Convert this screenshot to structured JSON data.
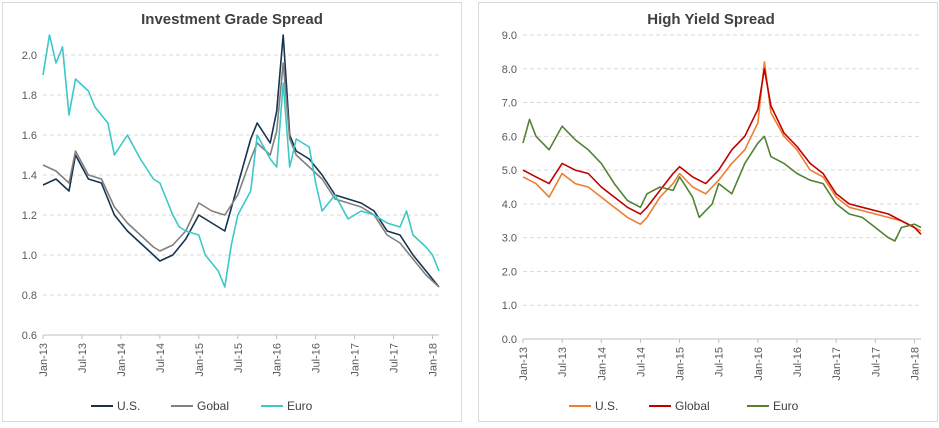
{
  "chart_data": [
    {
      "type": "line",
      "title": "Investment Grade Spread",
      "xlabel": "",
      "ylabel": "",
      "ylim": [
        0.6,
        2.1
      ],
      "yticks": [
        "0.6",
        "0.8",
        "1.0",
        "1.2",
        "1.4",
        "1.6",
        "1.8",
        "2.0"
      ],
      "xticks": [
        "Jan-13",
        "Jul-13",
        "Jan-14",
        "Jul-14",
        "Jan-15",
        "Jul-15",
        "Jan-16",
        "Jul-16",
        "Jan-17",
        "Jul-17",
        "Jan-18"
      ],
      "grid": "horizontal dashed",
      "legend_position": "bottom",
      "series": [
        {
          "name": "U.S.",
          "color": "#17344f",
          "points": [
            [
              "Jan-13",
              1.35
            ],
            [
              "Mar-13",
              1.38
            ],
            [
              "May-13",
              1.32
            ],
            [
              "Jun-13",
              1.5
            ],
            [
              "Aug-13",
              1.38
            ],
            [
              "Oct-13",
              1.36
            ],
            [
              "Dec-13",
              1.2
            ],
            [
              "Feb-14",
              1.12
            ],
            [
              "Apr-14",
              1.06
            ],
            [
              "Jun-14",
              1.0
            ],
            [
              "Jul-14",
              0.97
            ],
            [
              "Sep-14",
              1.0
            ],
            [
              "Nov-14",
              1.08
            ],
            [
              "Jan-15",
              1.2
            ],
            [
              "Mar-15",
              1.16
            ],
            [
              "May-15",
              1.12
            ],
            [
              "Jul-15",
              1.35
            ],
            [
              "Sep-15",
              1.58
            ],
            [
              "Oct-15",
              1.66
            ],
            [
              "Dec-15",
              1.56
            ],
            [
              "Jan-16",
              1.72
            ],
            [
              "Feb-16",
              2.1
            ],
            [
              "Mar-16",
              1.6
            ],
            [
              "Apr-16",
              1.52
            ],
            [
              "Jun-16",
              1.48
            ],
            [
              "Aug-16",
              1.4
            ],
            [
              "Oct-16",
              1.3
            ],
            [
              "Dec-16",
              1.28
            ],
            [
              "Feb-17",
              1.26
            ],
            [
              "Apr-17",
              1.22
            ],
            [
              "Jun-17",
              1.12
            ],
            [
              "Aug-17",
              1.1
            ],
            [
              "Oct-17",
              1.0
            ],
            [
              "Dec-17",
              0.92
            ],
            [
              "Feb-18",
              0.84
            ]
          ]
        },
        {
          "name": "Gobal",
          "color": "#808080",
          "points": [
            [
              "Jan-13",
              1.45
            ],
            [
              "Mar-13",
              1.42
            ],
            [
              "May-13",
              1.36
            ],
            [
              "Jun-13",
              1.52
            ],
            [
              "Aug-13",
              1.4
            ],
            [
              "Oct-13",
              1.38
            ],
            [
              "Dec-13",
              1.24
            ],
            [
              "Feb-14",
              1.16
            ],
            [
              "Apr-14",
              1.1
            ],
            [
              "Jun-14",
              1.04
            ],
            [
              "Jul-14",
              1.02
            ],
            [
              "Sep-14",
              1.05
            ],
            [
              "Nov-14",
              1.12
            ],
            [
              "Jan-15",
              1.26
            ],
            [
              "Mar-15",
              1.22
            ],
            [
              "May-15",
              1.2
            ],
            [
              "Jul-15",
              1.3
            ],
            [
              "Sep-15",
              1.48
            ],
            [
              "Oct-15",
              1.56
            ],
            [
              "Dec-15",
              1.5
            ],
            [
              "Jan-16",
              1.62
            ],
            [
              "Feb-16",
              1.96
            ],
            [
              "Mar-16",
              1.58
            ],
            [
              "Apr-16",
              1.5
            ],
            [
              "Jun-16",
              1.44
            ],
            [
              "Aug-16",
              1.38
            ],
            [
              "Oct-16",
              1.28
            ],
            [
              "Dec-16",
              1.26
            ],
            [
              "Feb-17",
              1.24
            ],
            [
              "Apr-17",
              1.2
            ],
            [
              "Jun-17",
              1.1
            ],
            [
              "Aug-17",
              1.06
            ],
            [
              "Oct-17",
              0.98
            ],
            [
              "Dec-17",
              0.9
            ],
            [
              "Feb-18",
              0.84
            ]
          ]
        },
        {
          "name": "Euro",
          "color": "#3cc8c8",
          "points": [
            [
              "Jan-13",
              1.9
            ],
            [
              "Feb-13",
              2.1
            ],
            [
              "Mar-13",
              1.96
            ],
            [
              "Apr-13",
              2.04
            ],
            [
              "May-13",
              1.7
            ],
            [
              "Jun-13",
              1.88
            ],
            [
              "Aug-13",
              1.82
            ],
            [
              "Sep-13",
              1.74
            ],
            [
              "Nov-13",
              1.66
            ],
            [
              "Dec-13",
              1.5
            ],
            [
              "Feb-14",
              1.6
            ],
            [
              "Apr-14",
              1.48
            ],
            [
              "Jun-14",
              1.38
            ],
            [
              "Jul-14",
              1.36
            ],
            [
              "Sep-14",
              1.2
            ],
            [
              "Oct-14",
              1.14
            ],
            [
              "Nov-14",
              1.12
            ],
            [
              "Jan-15",
              1.1
            ],
            [
              "Feb-15",
              1.0
            ],
            [
              "Apr-15",
              0.92
            ],
            [
              "May-15",
              0.84
            ],
            [
              "Jun-15",
              1.05
            ],
            [
              "Jul-15",
              1.2
            ],
            [
              "Sep-15",
              1.32
            ],
            [
              "Oct-15",
              1.6
            ],
            [
              "Dec-15",
              1.48
            ],
            [
              "Jan-16",
              1.44
            ],
            [
              "Feb-16",
              1.86
            ],
            [
              "Mar-16",
              1.44
            ],
            [
              "Apr-16",
              1.58
            ],
            [
              "Jun-16",
              1.54
            ],
            [
              "Jul-16",
              1.36
            ],
            [
              "Aug-16",
              1.22
            ],
            [
              "Oct-16",
              1.3
            ],
            [
              "Dec-16",
              1.18
            ],
            [
              "Feb-17",
              1.22
            ],
            [
              "Apr-17",
              1.2
            ],
            [
              "Jun-17",
              1.16
            ],
            [
              "Aug-17",
              1.14
            ],
            [
              "Sep-17",
              1.22
            ],
            [
              "Oct-17",
              1.1
            ],
            [
              "Dec-17",
              1.04
            ],
            [
              "Jan-18",
              1.0
            ],
            [
              "Feb-18",
              0.92
            ]
          ]
        }
      ]
    },
    {
      "type": "line",
      "title": "High Yield Spread",
      "xlabel": "",
      "ylabel": "",
      "ylim": [
        0.0,
        9.0
      ],
      "yticks": [
        "0.0",
        "1.0",
        "2.0",
        "3.0",
        "4.0",
        "5.0",
        "6.0",
        "7.0",
        "8.0",
        "9.0"
      ],
      "xticks": [
        "Jan-13",
        "Jul-13",
        "Jan-14",
        "Jul-14",
        "Jan-15",
        "Jul-15",
        "Jan-16",
        "Jul-16",
        "Jan-17",
        "Jul-17",
        "Jan-18"
      ],
      "grid": "horizontal dashed",
      "legend_position": "bottom",
      "series": [
        {
          "name": "U.S.",
          "color": "#ed7d31",
          "points": [
            [
              "Jan-13",
              4.8
            ],
            [
              "Mar-13",
              4.6
            ],
            [
              "May-13",
              4.2
            ],
            [
              "Jul-13",
              4.9
            ],
            [
              "Sep-13",
              4.6
            ],
            [
              "Nov-13",
              4.5
            ],
            [
              "Jan-14",
              4.2
            ],
            [
              "Mar-14",
              3.9
            ],
            [
              "May-14",
              3.6
            ],
            [
              "Jul-14",
              3.4
            ],
            [
              "Aug-14",
              3.6
            ],
            [
              "Oct-14",
              4.2
            ],
            [
              "Dec-14",
              4.6
            ],
            [
              "Jan-15",
              4.9
            ],
            [
              "Mar-15",
              4.5
            ],
            [
              "May-15",
              4.3
            ],
            [
              "Jul-15",
              4.7
            ],
            [
              "Sep-15",
              5.2
            ],
            [
              "Nov-15",
              5.6
            ],
            [
              "Jan-16",
              6.4
            ],
            [
              "Feb-16",
              8.2
            ],
            [
              "Mar-16",
              6.7
            ],
            [
              "May-16",
              6.0
            ],
            [
              "Jul-16",
              5.6
            ],
            [
              "Sep-16",
              5.0
            ],
            [
              "Nov-16",
              4.8
            ],
            [
              "Jan-17",
              4.2
            ],
            [
              "Mar-17",
              3.9
            ],
            [
              "May-17",
              3.8
            ],
            [
              "Jul-17",
              3.7
            ],
            [
              "Sep-17",
              3.6
            ],
            [
              "Nov-17",
              3.5
            ],
            [
              "Jan-18",
              3.3
            ],
            [
              "Feb-18",
              3.2
            ]
          ]
        },
        {
          "name": "Global",
          "color": "#c00000",
          "points": [
            [
              "Jan-13",
              5.0
            ],
            [
              "Mar-13",
              4.8
            ],
            [
              "May-13",
              4.6
            ],
            [
              "Jul-13",
              5.2
            ],
            [
              "Sep-13",
              5.0
            ],
            [
              "Nov-13",
              4.9
            ],
            [
              "Jan-14",
              4.5
            ],
            [
              "Mar-14",
              4.2
            ],
            [
              "May-14",
              3.9
            ],
            [
              "Jul-14",
              3.7
            ],
            [
              "Aug-14",
              3.9
            ],
            [
              "Oct-14",
              4.4
            ],
            [
              "Dec-14",
              4.9
            ],
            [
              "Jan-15",
              5.1
            ],
            [
              "Mar-15",
              4.8
            ],
            [
              "May-15",
              4.6
            ],
            [
              "Jul-15",
              5.0
            ],
            [
              "Sep-15",
              5.6
            ],
            [
              "Nov-15",
              6.0
            ],
            [
              "Jan-16",
              6.8
            ],
            [
              "Feb-16",
              8.0
            ],
            [
              "Mar-16",
              6.9
            ],
            [
              "May-16",
              6.1
            ],
            [
              "Jul-16",
              5.7
            ],
            [
              "Sep-16",
              5.2
            ],
            [
              "Nov-16",
              4.9
            ],
            [
              "Jan-17",
              4.3
            ],
            [
              "Mar-17",
              4.0
            ],
            [
              "May-17",
              3.9
            ],
            [
              "Jul-17",
              3.8
            ],
            [
              "Sep-17",
              3.7
            ],
            [
              "Nov-17",
              3.5
            ],
            [
              "Jan-18",
              3.3
            ],
            [
              "Feb-18",
              3.1
            ]
          ]
        },
        {
          "name": "Euro",
          "color": "#548235",
          "points": [
            [
              "Jan-13",
              5.8
            ],
            [
              "Feb-13",
              6.5
            ],
            [
              "Mar-13",
              6.0
            ],
            [
              "May-13",
              5.6
            ],
            [
              "Jul-13",
              6.3
            ],
            [
              "Sep-13",
              5.9
            ],
            [
              "Nov-13",
              5.6
            ],
            [
              "Jan-14",
              5.2
            ],
            [
              "Mar-14",
              4.6
            ],
            [
              "May-14",
              4.1
            ],
            [
              "Jul-14",
              3.9
            ],
            [
              "Aug-14",
              4.3
            ],
            [
              "Oct-14",
              4.5
            ],
            [
              "Dec-14",
              4.4
            ],
            [
              "Jan-15",
              4.8
            ],
            [
              "Mar-15",
              4.2
            ],
            [
              "Apr-15",
              3.6
            ],
            [
              "Jun-15",
              4.0
            ],
            [
              "Jul-15",
              4.6
            ],
            [
              "Sep-15",
              4.3
            ],
            [
              "Nov-15",
              5.2
            ],
            [
              "Jan-16",
              5.8
            ],
            [
              "Feb-16",
              6.0
            ],
            [
              "Mar-16",
              5.4
            ],
            [
              "May-16",
              5.2
            ],
            [
              "Jul-16",
              4.9
            ],
            [
              "Sep-16",
              4.7
            ],
            [
              "Nov-16",
              4.6
            ],
            [
              "Jan-17",
              4.0
            ],
            [
              "Mar-17",
              3.7
            ],
            [
              "May-17",
              3.6
            ],
            [
              "Jul-17",
              3.3
            ],
            [
              "Sep-17",
              3.0
            ],
            [
              "Oct-17",
              2.9
            ],
            [
              "Nov-17",
              3.3
            ],
            [
              "Jan-18",
              3.4
            ],
            [
              "Feb-18",
              3.3
            ]
          ]
        }
      ]
    }
  ]
}
